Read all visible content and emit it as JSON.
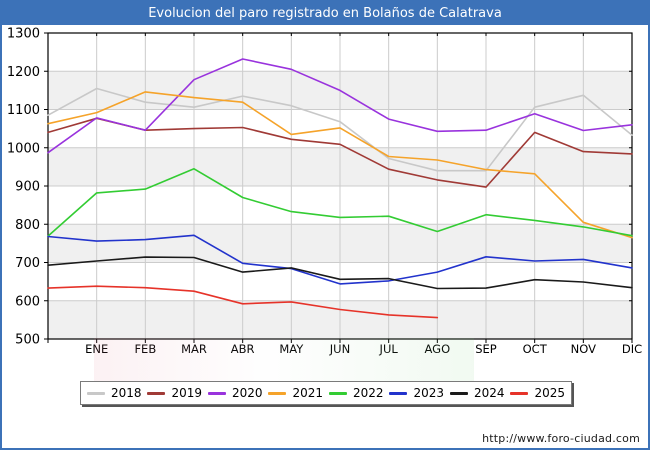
{
  "window": {
    "title": "Evolucion del paro registrado en Bolaños de Calatrava"
  },
  "footer": {
    "url": "http://www.foro-ciudad.com"
  },
  "colors": {
    "frame_blue": "#3c72b8",
    "band_gray": "#f0f0f0",
    "gridline": "#cccccc",
    "axis": "#000000"
  },
  "legend": {
    "items": [
      {
        "label": "2018",
        "color": "#c8c8c8"
      },
      {
        "label": "2019",
        "color": "#a03a36"
      },
      {
        "label": "2020",
        "color": "#9933dd"
      },
      {
        "label": "2021",
        "color": "#f5a32a"
      },
      {
        "label": "2022",
        "color": "#33cc33"
      },
      {
        "label": "2023",
        "color": "#2233cc"
      },
      {
        "label": "2024",
        "color": "#1a1a1a"
      },
      {
        "label": "2025",
        "color": "#e63329"
      }
    ]
  },
  "chart_data": {
    "type": "line",
    "title": "Evolucion del paro registrado en Bolaños de Calatrava",
    "xlabel": "",
    "ylabel": "",
    "ylim": [
      500,
      1300
    ],
    "ytick_step": 100,
    "grid": true,
    "legend_position": "bottom",
    "categories": [
      "",
      "ENE",
      "FEB",
      "MAR",
      "ABR",
      "MAY",
      "JUN",
      "JUL",
      "AGO",
      "SEP",
      "OCT",
      "NOV",
      "DIC"
    ],
    "x_note": "first point of each series sits on the y-axis just before ENE",
    "series": [
      {
        "name": "2018",
        "color": "#c8c8c8",
        "values": [
          1085,
          1155,
          1119,
          1106,
          1135,
          1110,
          1068,
          972,
          940,
          940,
          1106,
          1137,
          1033
        ]
      },
      {
        "name": "2019",
        "color": "#a03a36",
        "values": [
          1040,
          1077,
          1046,
          1050,
          1053,
          1022,
          1009,
          944,
          916,
          897,
          1040,
          990,
          984
        ]
      },
      {
        "name": "2020",
        "color": "#9933dd",
        "values": [
          987,
          1078,
          1046,
          1178,
          1232,
          1205,
          1150,
          1075,
          1043,
          1046,
          1089,
          1045,
          1060
        ]
      },
      {
        "name": "2021",
        "color": "#f5a32a",
        "values": [
          1063,
          1092,
          1146,
          1131,
          1119,
          1035,
          1052,
          977,
          968,
          943,
          932,
          805,
          765
        ]
      },
      {
        "name": "2022",
        "color": "#33cc33",
        "values": [
          769,
          882,
          892,
          945,
          870,
          833,
          818,
          821,
          781,
          825,
          810,
          793,
          770
        ]
      },
      {
        "name": "2023",
        "color": "#2233cc",
        "values": [
          768,
          756,
          760,
          771,
          698,
          684,
          644,
          652,
          675,
          715,
          704,
          708,
          686
        ]
      },
      {
        "name": "2024",
        "color": "#1a1a1a",
        "values": [
          693,
          704,
          714,
          713,
          675,
          686,
          656,
          658,
          632,
          633,
          655,
          649,
          634
        ]
      },
      {
        "name": "2025",
        "color": "#e63329",
        "values": [
          633,
          638,
          634,
          625,
          592,
          597,
          577,
          563,
          556
        ]
      }
    ]
  }
}
